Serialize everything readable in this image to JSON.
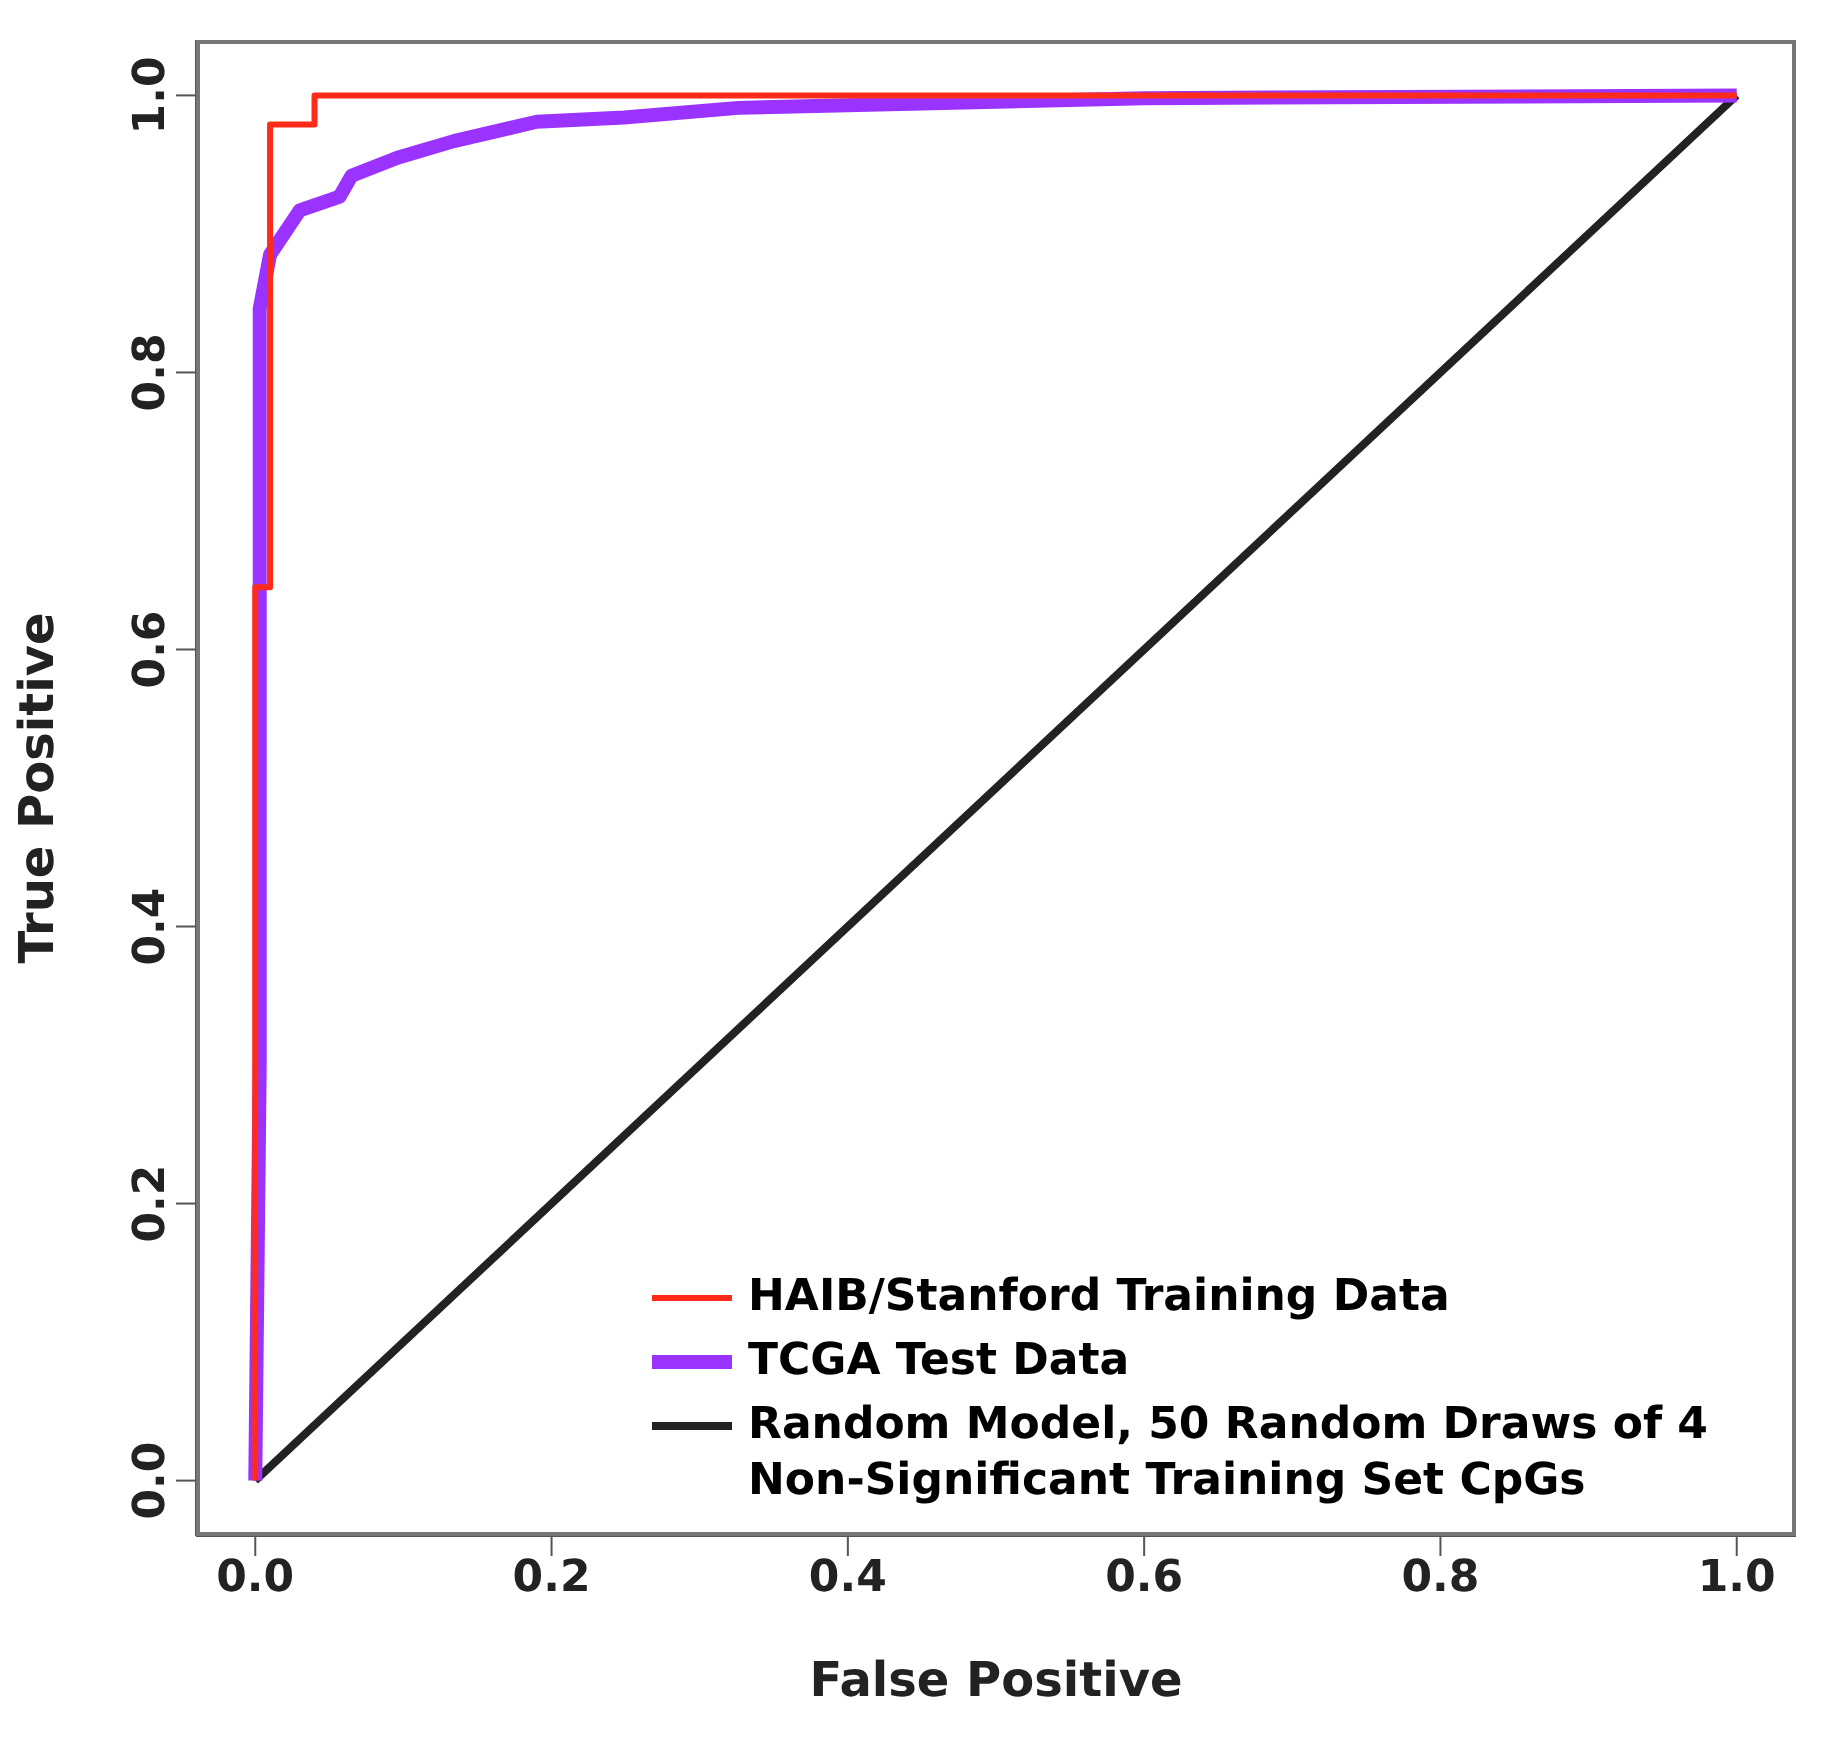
{
  "chart_data": {
    "type": "line",
    "xlabel": "False Positive",
    "ylabel": "True Positive",
    "xlim": [
      -0.04,
      1.04
    ],
    "ylim": [
      -0.04,
      1.04
    ],
    "xticks": [
      {
        "value": 0,
        "label": "0.0"
      },
      {
        "value": 0.2,
        "label": "0.2"
      },
      {
        "value": 0.4,
        "label": "0.4"
      },
      {
        "value": 0.6,
        "label": "0.6"
      },
      {
        "value": 0.8,
        "label": "0.8"
      },
      {
        "value": 1,
        "label": "1.0"
      }
    ],
    "yticks": [
      {
        "value": 0,
        "label": "0.0"
      },
      {
        "value": 0.2,
        "label": "0.2"
      },
      {
        "value": 0.4,
        "label": "0.4"
      },
      {
        "value": 0.6,
        "label": "0.6"
      },
      {
        "value": 0.8,
        "label": "0.8"
      },
      {
        "value": 1,
        "label": "1.0"
      }
    ],
    "series": [
      {
        "name": "HAIB/Stanford Training Data",
        "color": "#ff2a1a",
        "type": "step",
        "x": [
          0,
          0,
          0.01,
          0.04,
          1
        ],
        "values": [
          0,
          0.645,
          0.979,
          1,
          1
        ]
      },
      {
        "name": "TCGA Test Data",
        "color": "#9a33ff",
        "x": [
          0,
          0.003,
          0.003,
          0.01,
          0.03,
          0.057,
          0.065,
          0.096,
          0.134,
          0.19,
          0.249,
          0.326,
          0.6,
          1
        ],
        "values": [
          0,
          0.3,
          0.846,
          0.885,
          0.917,
          0.927,
          0.942,
          0.955,
          0.967,
          0.981,
          0.984,
          0.991,
          0.998,
          1
        ]
      },
      {
        "name": "Random Model, 50 Random Draws of 4 Non-Significant Training Set CpGs",
        "color": "#222222",
        "x": [
          0,
          1
        ],
        "values": [
          0,
          1
        ]
      }
    ],
    "legend": "bottom right",
    "grid": false
  }
}
